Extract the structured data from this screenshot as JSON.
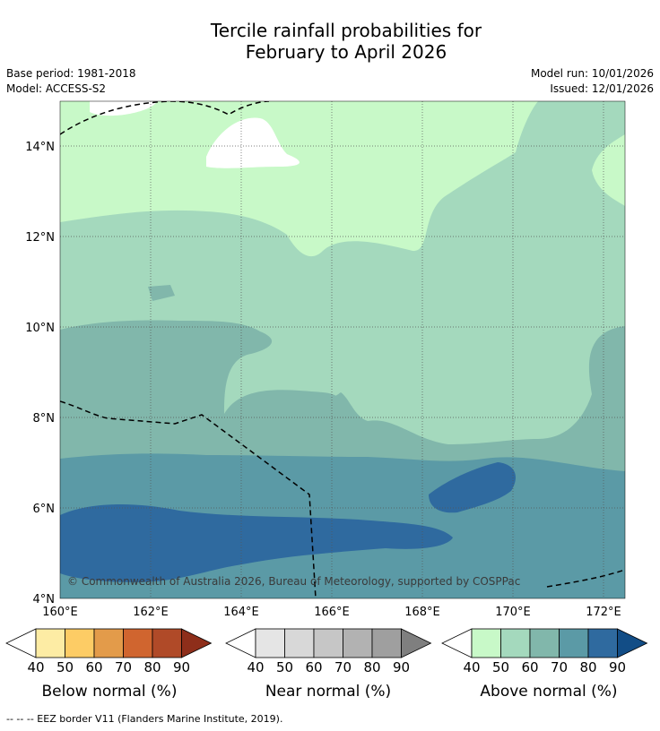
{
  "title_line1": "Tercile rainfall probabilities for",
  "title_line2": "February to April 2026",
  "base_period": "Base period: 1981-2018",
  "model": "Model: ACCESS-S2",
  "model_run": "Model run: 10/01/2026",
  "issued": "Issued: 12/01/2026",
  "map": {
    "lon_labels": [
      "160°E",
      "162°E",
      "164°E",
      "166°E",
      "168°E",
      "170°E",
      "172°E"
    ],
    "lat_labels": [
      "14°N",
      "12°N",
      "10°N",
      "8°N",
      "6°N",
      "4°N"
    ],
    "copyright": "© Commonwealth of Australia 2026, Bureau of Meteorology, supported by COSPPac"
  },
  "legends": [
    {
      "label": "Below normal (%)",
      "ticks": [
        "40",
        "50",
        "60",
        "70",
        "80",
        "90"
      ],
      "colors": [
        "#fdeca4",
        "#fdcc65",
        "#e39b4a",
        "#d0652f",
        "#b04a28",
        "#8e2e1a"
      ]
    },
    {
      "label": "Near normal (%)",
      "ticks": [
        "40",
        "50",
        "60",
        "70",
        "80",
        "90"
      ],
      "colors": [
        "#e5e5e5",
        "#d8d8d8",
        "#c6c6c6",
        "#b2b2b2",
        "#9f9f9f",
        "#7f7f7f"
      ]
    },
    {
      "label": "Above normal (%)",
      "ticks": [
        "40",
        "50",
        "60",
        "70",
        "80",
        "90"
      ],
      "colors": [
        "#c8f9c8",
        "#a4d9bd",
        "#81b7ab",
        "#5b9aa6",
        "#2f6a9f",
        "#124d86"
      ]
    }
  ],
  "footnote": "--  --  -- EEZ border V11 (Flanders Marine Institute, 2019)."
}
